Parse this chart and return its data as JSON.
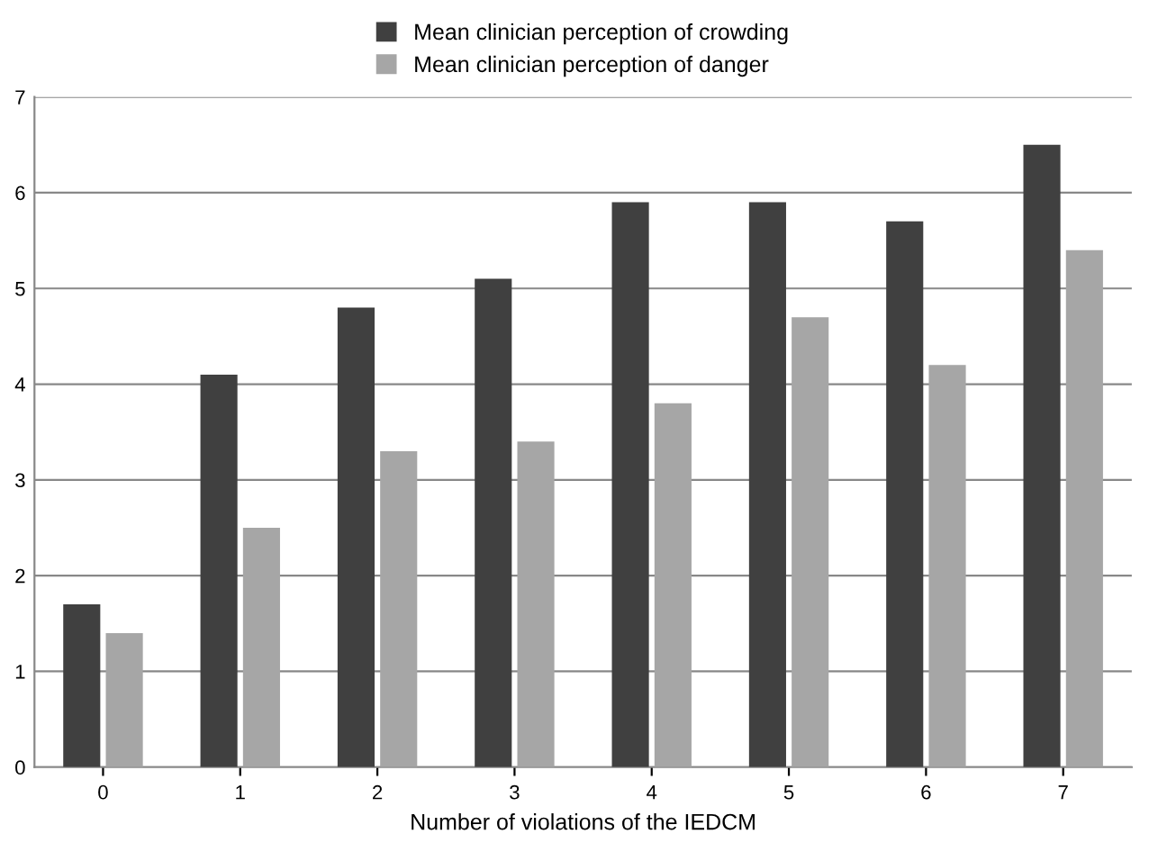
{
  "chart_data": {
    "type": "bar",
    "xlabel": "Number of violations of the IEDCM",
    "categories": [
      "0",
      "1",
      "2",
      "3",
      "4",
      "5",
      "6",
      "7"
    ],
    "series": [
      {
        "name": "Mean clinician perception of crowding",
        "color": "#404040",
        "values": [
          1.7,
          4.1,
          4.8,
          5.1,
          5.9,
          5.9,
          5.7,
          6.5
        ]
      },
      {
        "name": "Mean clinician perception of danger",
        "color": "#a6a6a6",
        "values": [
          1.4,
          2.5,
          3.3,
          3.4,
          3.8,
          4.7,
          4.2,
          5.4
        ]
      }
    ],
    "ylim": [
      0,
      7
    ],
    "yticks": [
      0,
      1,
      2,
      3,
      4,
      5,
      6,
      7
    ],
    "grid": "y",
    "legend": "top"
  }
}
